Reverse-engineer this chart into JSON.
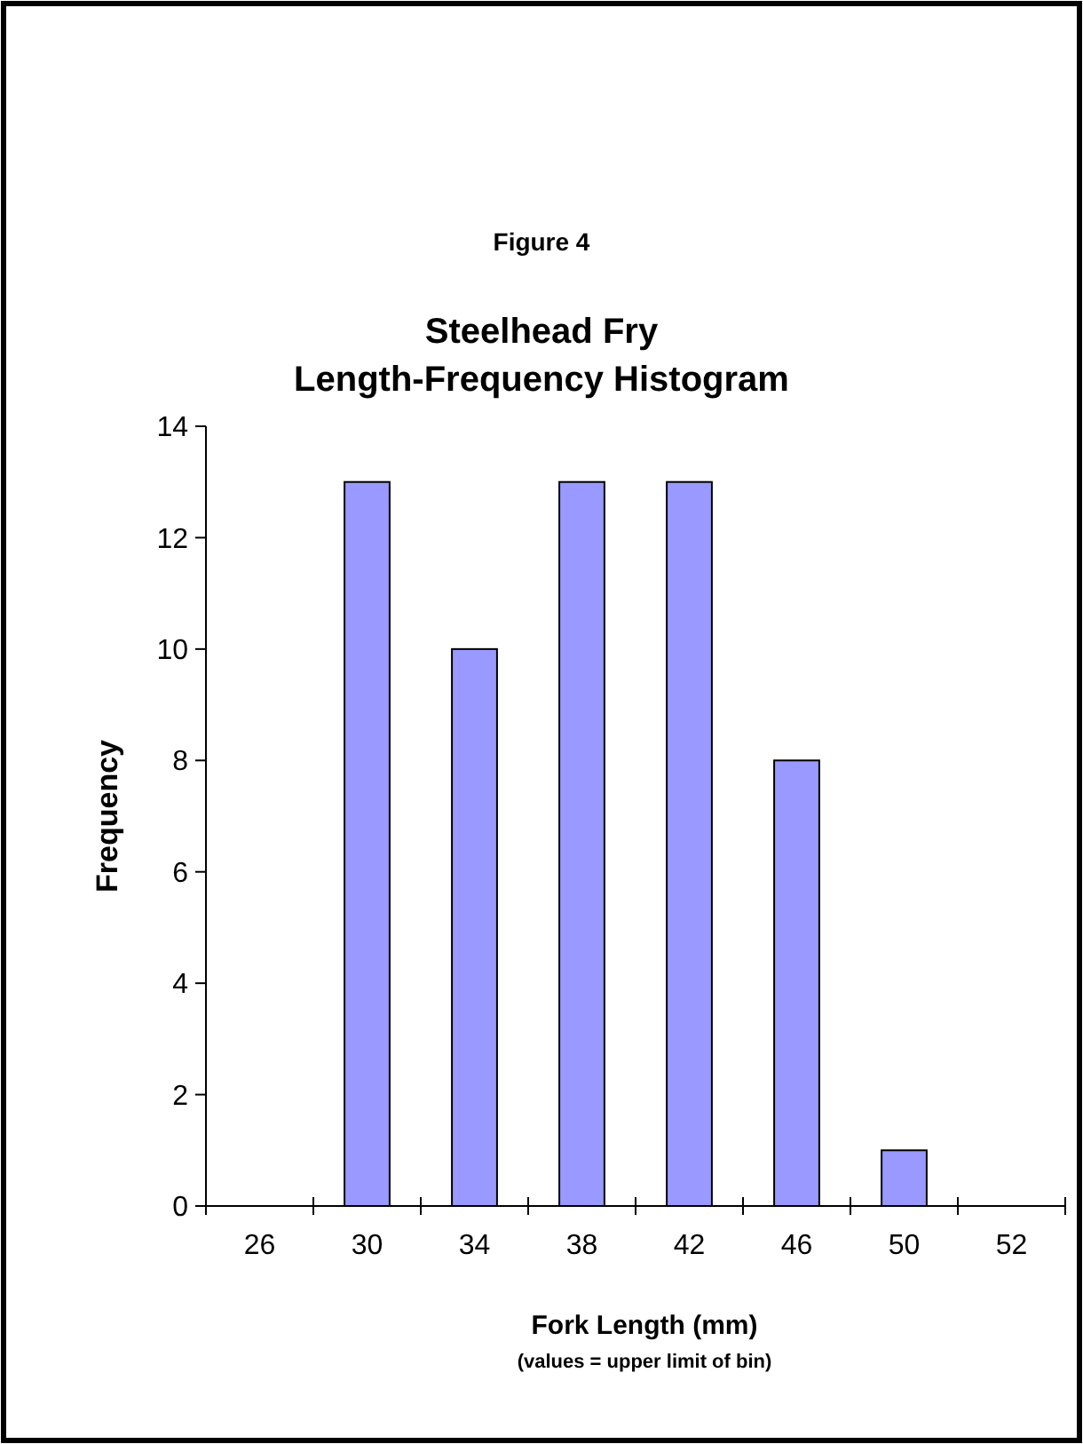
{
  "chart_data": {
    "type": "bar",
    "subtitle": "Figure 4",
    "title": "Steelhead Fry\nLength-Frequency Histogram",
    "xlabel": "Fork Length (mm)",
    "ylabel": "Frequency",
    "annotations": [
      "(values = upper limit of bin)"
    ],
    "categories": [
      "26",
      "30",
      "34",
      "38",
      "42",
      "46",
      "50",
      "52"
    ],
    "values": [
      0,
      13,
      10,
      13,
      13,
      8,
      1,
      0
    ],
    "color": "#9999ff",
    "ylim": [
      0,
      14
    ],
    "yticks": [
      0,
      2,
      4,
      6,
      8,
      10,
      12,
      14
    ],
    "grid": false
  }
}
